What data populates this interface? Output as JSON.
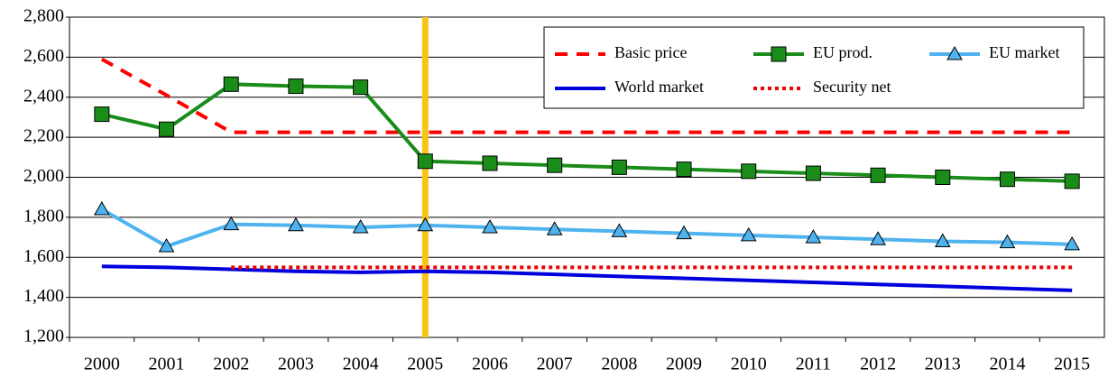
{
  "chart_data": {
    "type": "line",
    "categories": [
      "2000",
      "2001",
      "2002",
      "2003",
      "2004",
      "2005",
      "2006",
      "2007",
      "2008",
      "2009",
      "2010",
      "2011",
      "2012",
      "2013",
      "2014",
      "2015"
    ],
    "series": [
      {
        "name": "Basic price",
        "color": "#ff0000",
        "style": "dashed",
        "marker": "none",
        "values": [
          2590,
          2410,
          2225,
          2225,
          2225,
          2225,
          2225,
          2225,
          2225,
          2225,
          2225,
          2225,
          2225,
          2225,
          2225,
          2225
        ]
      },
      {
        "name": "EU prod.",
        "color": "#1a8c1a",
        "style": "solid",
        "marker": "square",
        "values": [
          2315,
          2240,
          2465,
          2455,
          2450,
          2080,
          2070,
          2060,
          2050,
          2040,
          2030,
          2020,
          2010,
          2000,
          1990,
          1980
        ]
      },
      {
        "name": "EU market",
        "color": "#4fb3ef",
        "style": "solid",
        "marker": "triangle",
        "values": [
          1840,
          1655,
          1765,
          1760,
          1750,
          1760,
          1750,
          1740,
          1730,
          1720,
          1710,
          1700,
          1690,
          1680,
          1675,
          1665
        ]
      },
      {
        "name": "World market",
        "color": "#0000dd",
        "style": "solid",
        "marker": "none",
        "values": [
          1555,
          1550,
          1540,
          1530,
          1525,
          1530,
          1525,
          1515,
          1505,
          1495,
          1485,
          1475,
          1465,
          1455,
          1445,
          1435
        ]
      },
      {
        "name": "Security net",
        "color": "#ee0000",
        "style": "dotted",
        "marker": "none",
        "values": [
          null,
          null,
          1550,
          1550,
          1550,
          1550,
          1550,
          1550,
          1550,
          1550,
          1550,
          1550,
          1550,
          1550,
          1550,
          1550
        ]
      }
    ],
    "ylim": [
      1200,
      2800
    ],
    "yticks": [
      {
        "value": 1200,
        "label": "1,200"
      },
      {
        "value": 1400,
        "label": "1,400"
      },
      {
        "value": 1600,
        "label": "1,600"
      },
      {
        "value": 1800,
        "label": "1,800"
      },
      {
        "value": 2000,
        "label": "2,000"
      },
      {
        "value": 2200,
        "label": "2,200"
      },
      {
        "value": 2400,
        "label": "2,400"
      },
      {
        "value": 2600,
        "label": "2,600"
      },
      {
        "value": 2800,
        "label": "2,800"
      }
    ],
    "grid": true,
    "legend": "top-right",
    "vertical_line": {
      "category": "2005",
      "color": "#f5c518"
    }
  }
}
